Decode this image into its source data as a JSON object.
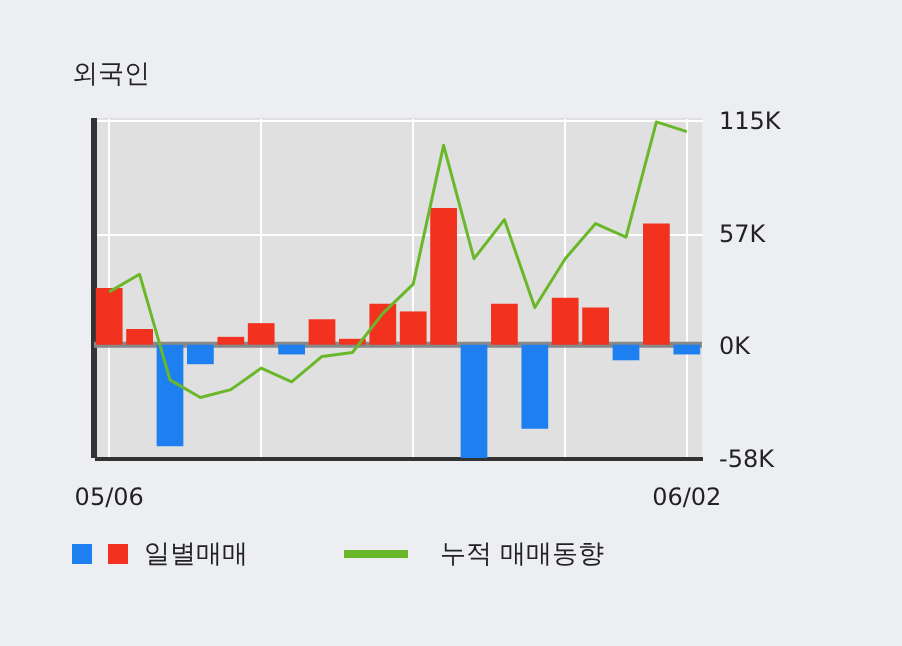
{
  "chart_data": {
    "type": "bar",
    "title": "외국인",
    "categories": [
      "05/06",
      null,
      null,
      null,
      null,
      null,
      null,
      null,
      null,
      null,
      null,
      null,
      null,
      null,
      null,
      null,
      null,
      null,
      null,
      "06/02"
    ],
    "series": [
      {
        "name": "일별매매",
        "colors": [
          "#f2311e",
          "#f2311e",
          "#1e7ff0",
          "#1e7ff0",
          "#f2311e",
          "#f2311e",
          "#1e7ff0",
          "#f2311e",
          "#f2311e",
          "#f2311e",
          "#f2311e",
          "#f2311e",
          "#1e7ff0",
          "#f2311e",
          "#1e7ff0",
          "#f2311e",
          "#f2311e",
          "#1e7ff0",
          "#f2311e",
          "#1e7ff0"
        ],
        "values": [
          29,
          8,
          -52,
          -10,
          4,
          11,
          -5,
          13,
          3,
          21,
          17,
          70,
          -58,
          21,
          -43,
          24,
          19,
          -8,
          62,
          -5
        ]
      },
      {
        "name": "누적 매매동향",
        "type": "line",
        "color": "#6ab82a",
        "values": [
          27,
          36,
          -18,
          -27,
          -23,
          -12,
          -19,
          -6,
          -4,
          16,
          31,
          102,
          44,
          64,
          19,
          44,
          62,
          55,
          114,
          109
        ]
      }
    ],
    "ylim": [
      -58,
      116
    ],
    "yticks": [
      {
        "value": -58,
        "label": "-58K"
      },
      {
        "value": 0,
        "label": "0K"
      },
      {
        "value": 57,
        "label": "57K"
      },
      {
        "value": 115,
        "label": "115K"
      }
    ],
    "ref_lines": [
      {
        "axis": "y",
        "value": 0,
        "color": "#888888"
      }
    ],
    "grid": true,
    "legend": "bottom"
  }
}
